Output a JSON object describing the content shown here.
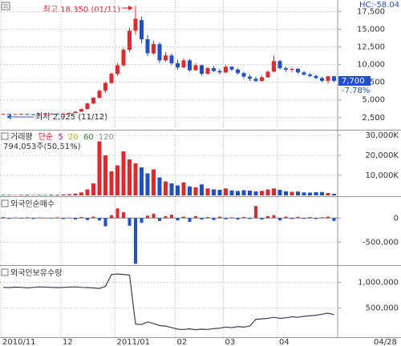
{
  "chart_data": [
    {
      "type": "candlestick",
      "hc_label": "HC:-58.04",
      "high_annotation": "최고 18,350 (01/11)",
      "low_annotation": "최저 2,925 (11/12)",
      "current_label": "7,700",
      "change_label": "-7.78%",
      "up_color": "#e8262a",
      "down_color": "#1d4fd0",
      "open": [
        3000,
        3000,
        2980,
        2990,
        3010,
        2970,
        2950,
        2980,
        3000,
        3050,
        3020,
        3080,
        3150,
        3350,
        3700,
        4500,
        5300,
        6300,
        7400,
        8700,
        9900,
        12100,
        14800,
        16300,
        13600,
        11600,
        12900,
        10600,
        11300,
        10200,
        9600,
        10600,
        9200,
        9900,
        8700,
        9500,
        9100,
        8900,
        9700,
        9300,
        8800,
        8300,
        8000,
        7700,
        8200,
        9000,
        10500,
        9500,
        9300,
        9400,
        8900,
        8600,
        8400,
        8100,
        7700,
        8350
      ],
      "high": [
        3050,
        3050,
        3020,
        3050,
        3060,
        3000,
        3000,
        3030,
        3080,
        3100,
        3100,
        3200,
        3400,
        3800,
        4600,
        5400,
        6500,
        7600,
        8900,
        10200,
        12400,
        15200,
        18350,
        16800,
        14200,
        13400,
        13200,
        11800,
        11600,
        10700,
        10900,
        10800,
        10200,
        10000,
        9700,
        9800,
        9400,
        9900,
        9800,
        9500,
        9000,
        8600,
        8300,
        8400,
        9200,
        11300,
        10700,
        9700,
        9600,
        9500,
        9100,
        8800,
        8600,
        8300,
        8400,
        8400
      ],
      "low": [
        2950,
        2950,
        2930,
        2950,
        2960,
        2925,
        2930,
        2950,
        2970,
        3000,
        3000,
        3050,
        3100,
        3300,
        3650,
        4400,
        5200,
        6000,
        7200,
        8400,
        9700,
        11800,
        14200,
        13000,
        11200,
        11400,
        10200,
        10400,
        9900,
        9300,
        9500,
        9000,
        9100,
        8400,
        8600,
        8900,
        8600,
        8800,
        9100,
        8600,
        8000,
        7700,
        7500,
        7600,
        8100,
        8900,
        9300,
        9000,
        8900,
        8700,
        8400,
        8200,
        7900,
        7500,
        7300,
        7500
      ],
      "close": [
        3000,
        2980,
        2990,
        3010,
        2970,
        2950,
        2980,
        3000,
        3050,
        3020,
        3080,
        3150,
        3350,
        3700,
        4500,
        5300,
        6300,
        7400,
        8700,
        9900,
        12100,
        14800,
        16500,
        13600,
        11600,
        12900,
        10600,
        11300,
        10200,
        9600,
        10600,
        9200,
        9900,
        8700,
        9500,
        9100,
        8900,
        9700,
        9300,
        8800,
        8300,
        8000,
        7700,
        8200,
        9000,
        10500,
        9500,
        9300,
        9400,
        8900,
        8600,
        8400,
        8100,
        7700,
        8350,
        7700
      ],
      "ylim": [
        1000,
        18700
      ],
      "yticks": [
        {
          "value": 2500,
          "label": "2,500"
        },
        {
          "value": 5000,
          "label": "5,000"
        },
        {
          "value": 7500,
          "label": "7,500"
        },
        {
          "value": 10000,
          "label": "10,000"
        },
        {
          "value": 12500,
          "label": "12,500"
        },
        {
          "value": 15000,
          "label": "15,000"
        },
        {
          "value": 17500,
          "label": "17,500"
        }
      ]
    },
    {
      "type": "volume",
      "legend": [
        "거래량",
        "단순",
        "5",
        "20",
        "60",
        "120"
      ],
      "subtitle": "794,053주(50,51%)",
      "values": [
        300,
        250,
        200,
        280,
        350,
        200,
        300,
        250,
        400,
        300,
        500,
        600,
        900,
        1500,
        3000,
        6000,
        27000,
        20000,
        12000,
        15000,
        22000,
        18000,
        16000,
        14000,
        11000,
        13000,
        9000,
        7000,
        6000,
        5000,
        6500,
        4500,
        4000,
        5500,
        3500,
        3000,
        2800,
        3500,
        2500,
        2200,
        2600,
        2400,
        2000,
        2300,
        3000,
        3500,
        2800,
        2000,
        1800,
        1900,
        1500,
        1400,
        1600,
        1700,
        1200,
        794
      ],
      "ylim": [
        0,
        31600
      ],
      "yticks": [
        {
          "value": 10000,
          "label": "10,000K"
        },
        {
          "value": 20000,
          "label": "20,000K"
        },
        {
          "value": 30000,
          "label": "30,000K"
        }
      ]
    },
    {
      "type": "bar",
      "title": "외국인순매수",
      "up_color": "#e8262a",
      "down_color": "#1d4fd0",
      "values": [
        20000,
        -15000,
        10000,
        -10000,
        15000,
        -20000,
        10000,
        5000,
        -10000,
        15000,
        -20000,
        10000,
        -30000,
        20000,
        -40000,
        30000,
        -50000,
        -170000,
        60000,
        200000,
        120000,
        -160000,
        -950000,
        -100000,
        50000,
        90000,
        -60000,
        40000,
        70000,
        -50000,
        30000,
        -80000,
        40000,
        -30000,
        20000,
        -40000,
        30000,
        -25000,
        15000,
        -30000,
        20000,
        -20000,
        250000,
        -30000,
        40000,
        60000,
        -50000,
        30000,
        -20000,
        25000,
        -15000,
        20000,
        -20000,
        15000,
        30000,
        -60000
      ],
      "ylim": [
        -960000,
        420000
      ],
      "yticks": [
        {
          "value": -500000,
          "label": "-500,000"
        },
        0
      ]
    },
    {
      "type": "line",
      "title": "외국인보유수량",
      "color": "#3a3a5a",
      "values": [
        900000,
        895000,
        905000,
        900000,
        890000,
        900000,
        910000,
        905000,
        900000,
        895000,
        900000,
        905000,
        910000,
        900000,
        895000,
        890000,
        880000,
        920000,
        1150000,
        1160000,
        1150000,
        1140000,
        190000,
        180000,
        230000,
        200000,
        160000,
        150000,
        120000,
        90000,
        85000,
        95000,
        80000,
        90000,
        85000,
        100000,
        110000,
        130000,
        120000,
        140000,
        130000,
        150000,
        280000,
        290000,
        300000,
        320000,
        300000,
        310000,
        330000,
        320000,
        340000,
        350000,
        360000,
        380000,
        400000,
        370000
      ],
      "ylim": [
        -50000,
        1270000
      ],
      "yticks": [
        {
          "value": 500000,
          "label": "500,000"
        },
        {
          "value": 1000000,
          "label": "1,000,000"
        }
      ],
      "categories": [
        "2010/11",
        null,
        null,
        null,
        null,
        null,
        null,
        null,
        null,
        null,
        "12",
        null,
        null,
        null,
        null,
        null,
        null,
        null,
        null,
        "2011/01",
        null,
        null,
        null,
        null,
        null,
        null,
        null,
        null,
        null,
        "02",
        null,
        null,
        null,
        null,
        null,
        null,
        null,
        "03",
        null,
        null,
        null,
        null,
        null,
        null,
        null,
        null,
        "04",
        null,
        null,
        null,
        null,
        null,
        null,
        null,
        null,
        null
      ],
      "last_date": "04/28"
    }
  ]
}
